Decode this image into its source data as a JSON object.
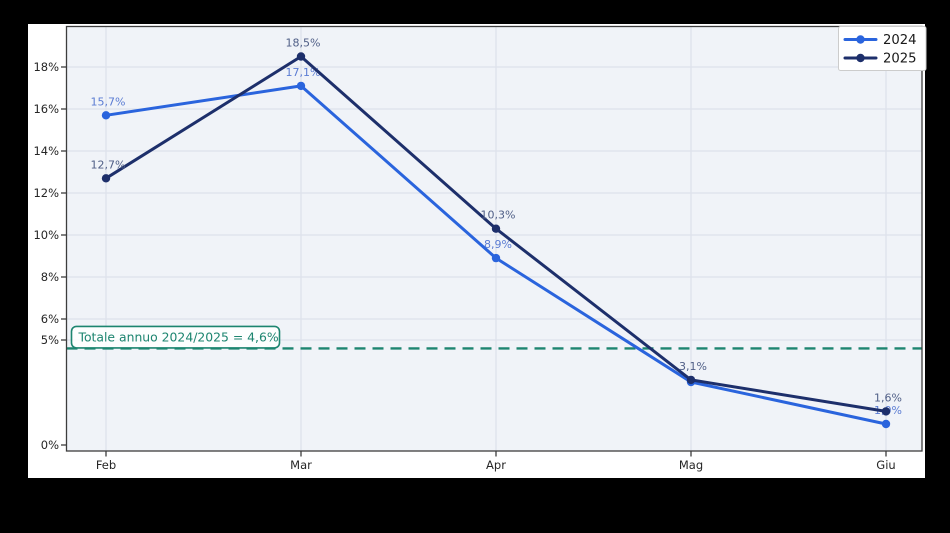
{
  "chart_data": {
    "type": "line",
    "title": "",
    "xlabel": "",
    "ylabel": "",
    "categories": [
      "Feb",
      "Mar",
      "Apr",
      "Mag",
      "Giu"
    ],
    "series": [
      {
        "name": "2024",
        "color": "#2a64dd",
        "label_color": "#5b7cd3",
        "values": [
          15.7,
          17.1,
          8.9,
          3.0,
          1.0
        ],
        "point_labels": [
          "15,7%",
          "17,1%",
          "8,9%",
          "",
          "1,0%"
        ]
      },
      {
        "name": "2025",
        "color": "#1d2f6b",
        "label_color": "#4f5e86",
        "values": [
          12.7,
          18.5,
          10.3,
          3.1,
          1.6
        ],
        "point_labels": [
          "12,7%",
          "18,5%",
          "10,3%",
          "3,1%",
          "1,6%"
        ]
      }
    ],
    "y_ticks": [
      0,
      5,
      6,
      8,
      10,
      12,
      14,
      16,
      18
    ],
    "y_tick_labels": [
      "0%",
      "5%",
      "6%",
      "8%",
      "10%",
      "12%",
      "14%",
      "16%",
      "18%"
    ],
    "ylim": [
      -0.3,
      19.9
    ],
    "grid": true,
    "legend": {
      "position": "upper right",
      "entries": [
        "2024",
        "2025"
      ]
    },
    "reference_line": {
      "value": 4.6,
      "style": "dashed",
      "color": "#1d8570",
      "annotation": "Totale annuo 2024/2025 = 4,6%"
    },
    "colors": {
      "page_background": "#000000",
      "figure_background": "#ffffff",
      "plot_background": "#f0f3f8",
      "gridline": "#dde2eb",
      "spine": "#3d3d3d",
      "tick_label": "#262626",
      "legend_text": "#1a1a1a"
    }
  }
}
